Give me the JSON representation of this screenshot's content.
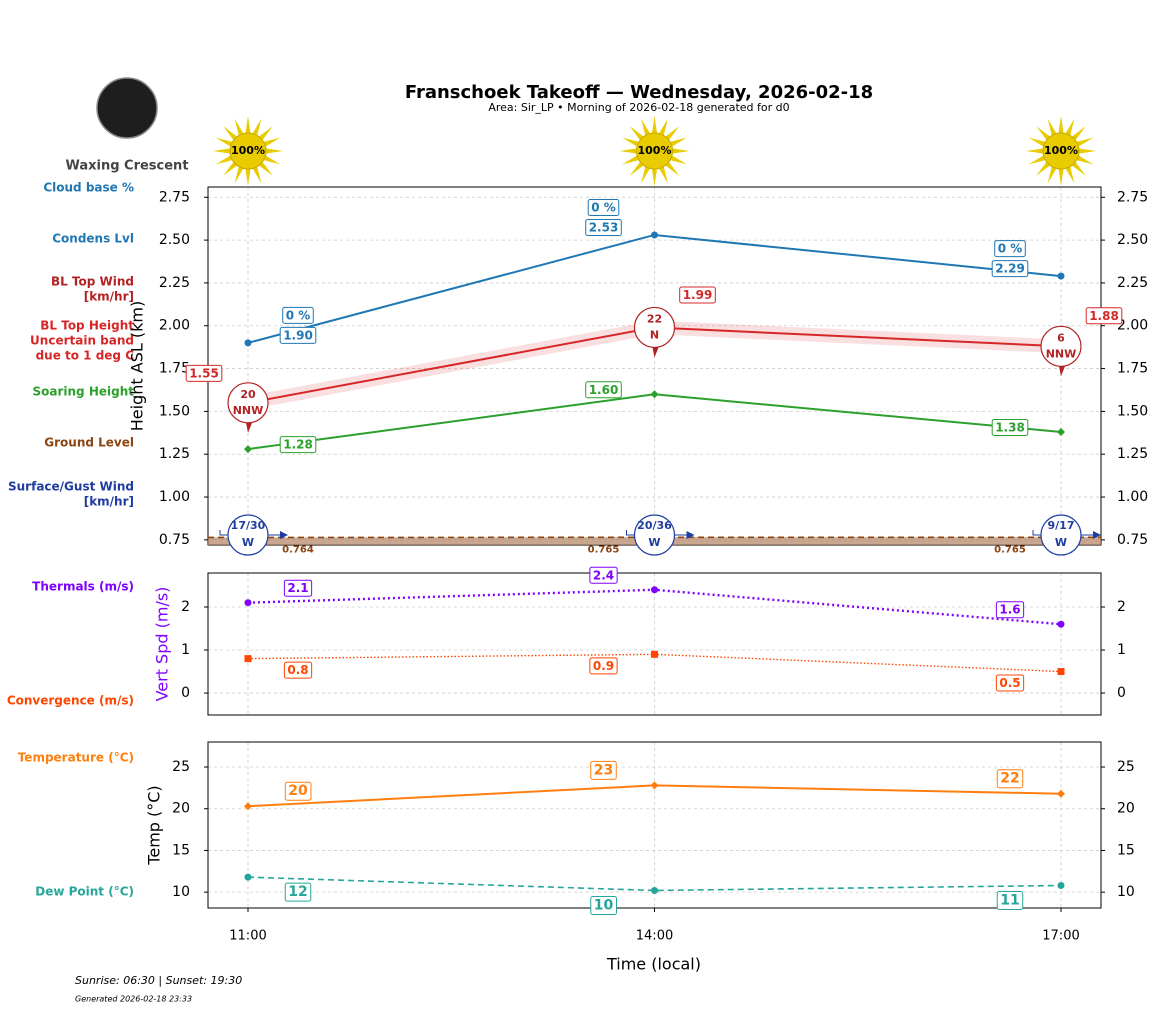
{
  "title": "Franschoek Takeoff — Wednesday, 2026-02-18",
  "subtitle": "Area: Sir_LP • Morning of 2026-02-18 generated for d0",
  "moon_phase": "Waxing Crescent",
  "sun_cover": {
    "values": [
      100,
      100,
      100
    ],
    "value_labels": [
      "100%",
      "100%",
      "100%"
    ]
  },
  "row_labels": [
    {
      "lines": [
        "Cloud base %"
      ],
      "color": "#1f77b4"
    },
    {
      "lines": [
        "Condens Lvl"
      ],
      "color": "#1f77b4"
    },
    {
      "lines": [
        "BL Top Wind",
        "[km/hr]"
      ],
      "color": "#b22222"
    },
    {
      "lines": [
        "BL Top Height",
        "Uncertain band",
        "due to 1 deg C"
      ],
      "color": "#d62728"
    },
    {
      "lines": [
        "Soaring Height"
      ],
      "color": "#2ca02c"
    },
    {
      "lines": [
        "Ground Level"
      ],
      "color": "#8b4513"
    },
    {
      "lines": [
        "Surface/Gust Wind",
        "[km/hr]"
      ],
      "color": "#1f3d9e"
    },
    {
      "lines": [
        "Thermals (m/s)"
      ],
      "color": "#7f00ff"
    },
    {
      "lines": [
        "Convergence (m/s)"
      ],
      "color": "#ff4500"
    },
    {
      "lines": [
        "Temperature (°C)"
      ],
      "color": "#ff7f0e"
    },
    {
      "lines": [
        "Dew Point (°C)"
      ],
      "color": "#26a69a"
    }
  ],
  "x_label": "Time (local)",
  "footer": {
    "sun_times": "Sunrise: 06:30 | Sunset: 19:30",
    "generated": "Generated 2026-02-18 23:33"
  },
  "chart_data": [
    {
      "type": "line",
      "y_label": "Height ASL (km)",
      "y_label_color": "#000000",
      "ylim": [
        0.72,
        2.81
      ],
      "grid": true,
      "yticks": [
        0.75,
        {
          "value": 1,
          "label": "1.00"
        },
        1.25,
        {
          "value": 1.5,
          "label": "1.50"
        },
        1.75,
        {
          "value": 2,
          "label": "2.00"
        },
        2.25,
        {
          "value": 2.5,
          "label": "2.50"
        },
        2.75
      ],
      "series": [
        {
          "color": "#1f77b4",
          "style": "solid",
          "marker": "circle",
          "values": [
            1.9,
            2.53,
            2.29
          ],
          "value_labels": [
            "1.90",
            "2.53",
            "2.29"
          ],
          "cloud_base": [
            0,
            0,
            0
          ],
          "cloud_base_labels": [
            "0 %",
            "0 %",
            "0 %"
          ]
        },
        {
          "color": "#d62728",
          "style": "solid",
          "marker": "none",
          "values": [
            1.55,
            1.99,
            1.88
          ],
          "band": [
            0.04,
            0.04,
            0.04
          ],
          "wind_speed": [
            20,
            22,
            6
          ],
          "wind_dir": [
            "NNW",
            "N",
            "NNW"
          ]
        },
        {
          "color": "#2ca02c",
          "style": "solid",
          "marker": "diamond",
          "values": [
            1.28,
            1.6,
            1.38
          ],
          "value_labels": [
            "1.28",
            "1.60",
            "1.38"
          ]
        },
        {
          "color": "#8b4513",
          "style": "dashed",
          "marker": "none",
          "fill": "#b08060",
          "values": [
            0.764,
            0.765,
            0.765
          ]
        }
      ],
      "surface_wind": {
        "color": "#1f3d9e",
        "labels": [
          "17/30",
          "20/36",
          "9/17"
        ],
        "dir": [
          "W",
          "W",
          "W"
        ]
      }
    },
    {
      "type": "line",
      "y_label": "Vert Spd (m/s)",
      "y_label_color": "#7f00ff",
      "ylim": [
        -0.51,
        2.79
      ],
      "grid": true,
      "yticks": [
        0,
        1,
        2
      ],
      "series": [
        {
          "color": "#7f00ff",
          "style": "dotted",
          "marker": "circle",
          "values": [
            2.1,
            2.4,
            1.6
          ]
        },
        {
          "color": "#ff4500",
          "style": "fine",
          "marker": "square",
          "values": [
            0.8,
            0.9,
            0.5
          ]
        }
      ]
    },
    {
      "type": "line",
      "y_label": "Temp (°C)",
      "y_label_color": "#000000",
      "ylim": [
        8.1,
        28
      ],
      "grid": true,
      "yticks": [
        10,
        15,
        20,
        25
      ],
      "categories": [
        "11:00",
        "14:00",
        "17:00"
      ],
      "series": [
        {
          "color": "#ff7f0e",
          "style": "solid",
          "marker": "diamond",
          "values": [
            20.3,
            22.8,
            21.8
          ],
          "value_labels": [
            "20",
            "23",
            "22"
          ]
        },
        {
          "color": "#26a69a",
          "style": "dashed",
          "marker": "circle",
          "values": [
            11.8,
            10.2,
            10.8
          ],
          "value_labels": [
            "12",
            "10",
            "11"
          ]
        }
      ]
    }
  ]
}
